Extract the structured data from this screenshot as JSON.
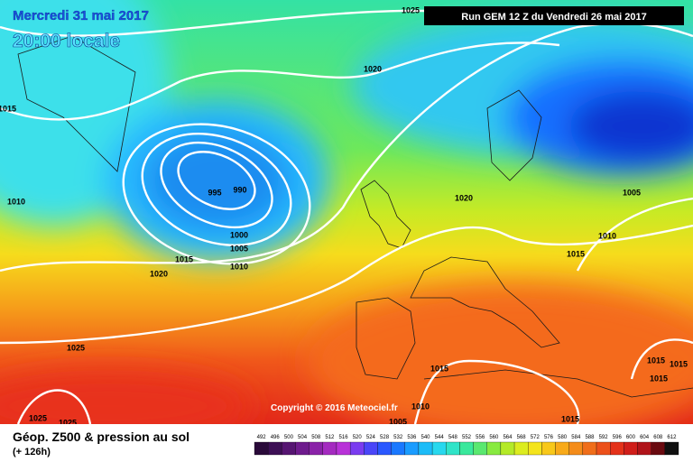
{
  "header": {
    "date": "Mercredi 31 mai 2017",
    "time": "20:00 locale",
    "run_info": "Run GEM 12 Z du Vendredi 26 mai 2017"
  },
  "copyright": "Copyright © 2016 Meteociel.fr",
  "isobar_labels": [
    1025,
    1020,
    1015,
    1010,
    995,
    990,
    1000,
    1005,
    1015,
    1010,
    1020,
    1020,
    1005,
    1010,
    1015,
    1025,
    1015,
    1015,
    1015,
    1015,
    1025,
    1025,
    1010,
    1005,
    1015
  ],
  "footer": {
    "title": "Géop. Z500 & pression au sol",
    "subtitle": "(+ 126h)"
  },
  "legend": {
    "levels": [
      492,
      496,
      500,
      504,
      508,
      512,
      516,
      520,
      524,
      528,
      532,
      536,
      540,
      544,
      548,
      552,
      556,
      560,
      564,
      568,
      572,
      576,
      580,
      584,
      588,
      592,
      596,
      600,
      604,
      608,
      612
    ],
    "colors": [
      "#2a0a3a",
      "#3d0f55",
      "#561572",
      "#6e1b8d",
      "#8a22a8",
      "#a42ac0",
      "#b832d8",
      "#7a3cf0",
      "#4a46f8",
      "#2a58ff",
      "#1a78ff",
      "#1a9cff",
      "#1cbcf8",
      "#28d8ee",
      "#30e4c8",
      "#3ae89c",
      "#5ae870",
      "#88ea40",
      "#b4ea28",
      "#dcec20",
      "#f4e41c",
      "#f8c81a",
      "#f8aa1a",
      "#f48c1a",
      "#f06e1a",
      "#ec501a",
      "#e4321a",
      "#d01e1a",
      "#b0141a",
      "#6a0a10",
      "#101010"
    ]
  }
}
